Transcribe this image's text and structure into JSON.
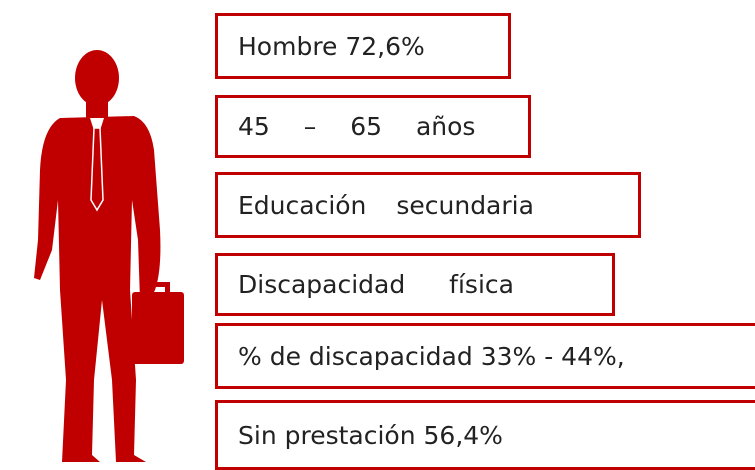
{
  "items": [
    "Hombre 72,6%",
    "45 – 65 años",
    "Educación secundaria",
    "Discapacidad física",
    "% de discapacidad 33% - 44%,",
    "Sin prestación 56,4%"
  ]
}
